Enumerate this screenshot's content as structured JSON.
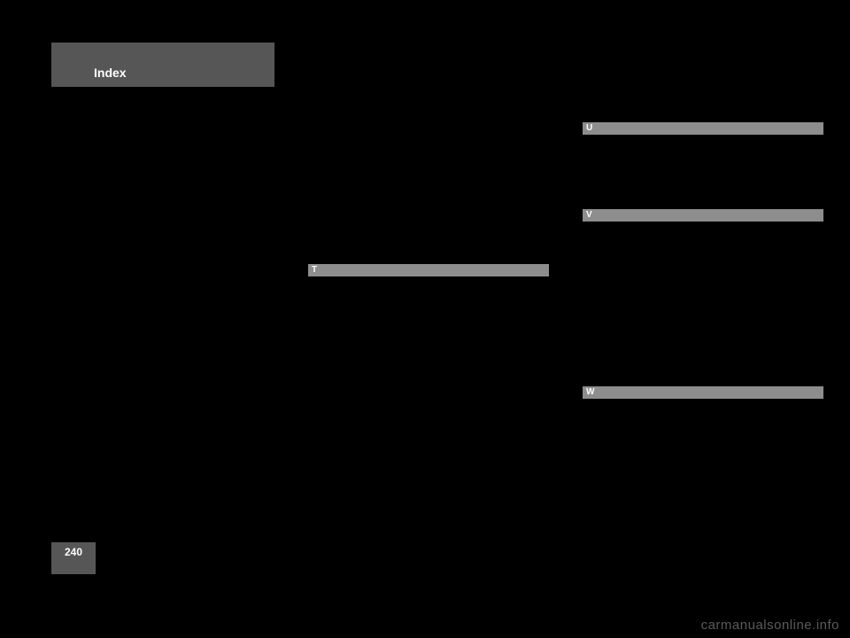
{
  "header": {
    "title": "Index"
  },
  "letters": {
    "t": "T",
    "u": "U",
    "v": "V",
    "w": "W"
  },
  "page_number": "240",
  "watermark": "carmanualsonline.info",
  "colors": {
    "page_bg": "#000000",
    "tab_bg": "#565656",
    "bar_bg": "#8d8d8d",
    "text": "#ffffff",
    "watermark": "#5b5b5b"
  }
}
